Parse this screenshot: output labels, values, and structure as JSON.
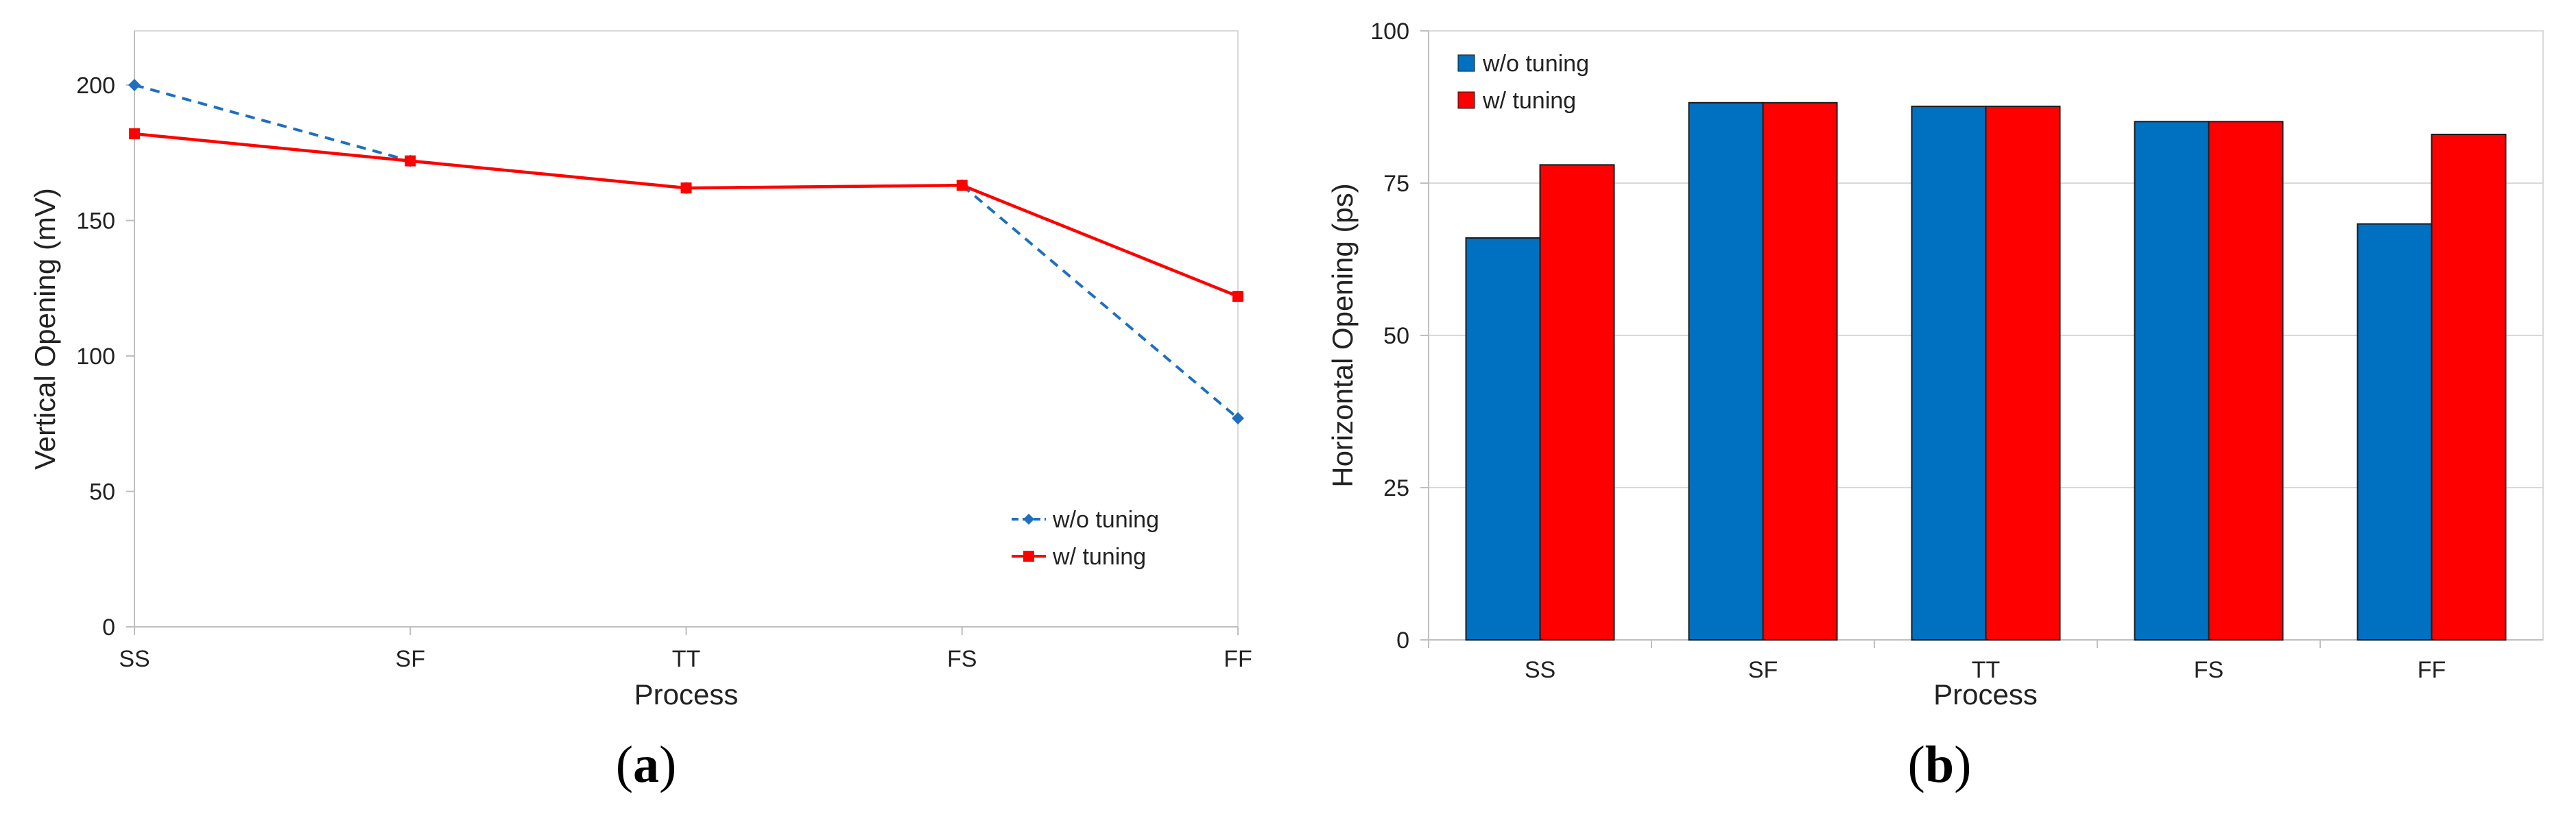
{
  "chart_data": [
    {
      "type": "line",
      "panel_label": "a",
      "xlabel": "Process",
      "ylabel": "Vertical Opening (mV)",
      "categories": [
        "SS",
        "SF",
        "TT",
        "FS",
        "FF"
      ],
      "ylim": [
        0,
        220
      ],
      "yticks": [
        0,
        50,
        100,
        150,
        200
      ],
      "grid": false,
      "legend_position": "bottom-right",
      "series": [
        {
          "name": "w/o tuning",
          "values": [
            200,
            172,
            162,
            163,
            77
          ],
          "color": "#1f6fbf",
          "line_style": "dashed",
          "marker": "diamond"
        },
        {
          "name": "w/ tuning",
          "values": [
            182,
            172,
            162,
            163,
            122
          ],
          "color": "#ff0000",
          "line_style": "solid",
          "marker": "square"
        }
      ]
    },
    {
      "type": "bar",
      "panel_label": "b",
      "xlabel": "Process",
      "ylabel": "Horizontal Opening (ps)",
      "categories": [
        "SS",
        "SF",
        "TT",
        "FS",
        "FF"
      ],
      "ylim": [
        0,
        100
      ],
      "yticks": [
        0,
        25,
        50,
        75,
        100
      ],
      "grid": true,
      "legend_position": "top-left",
      "series": [
        {
          "name": "w/o tuning",
          "values": [
            66,
            88.2,
            87.6,
            85.1,
            68.3
          ],
          "color": "#0070c0"
        },
        {
          "name": "w/ tuning",
          "values": [
            78,
            88.2,
            87.6,
            85.1,
            83
          ],
          "color": "#ff0000"
        }
      ]
    }
  ]
}
